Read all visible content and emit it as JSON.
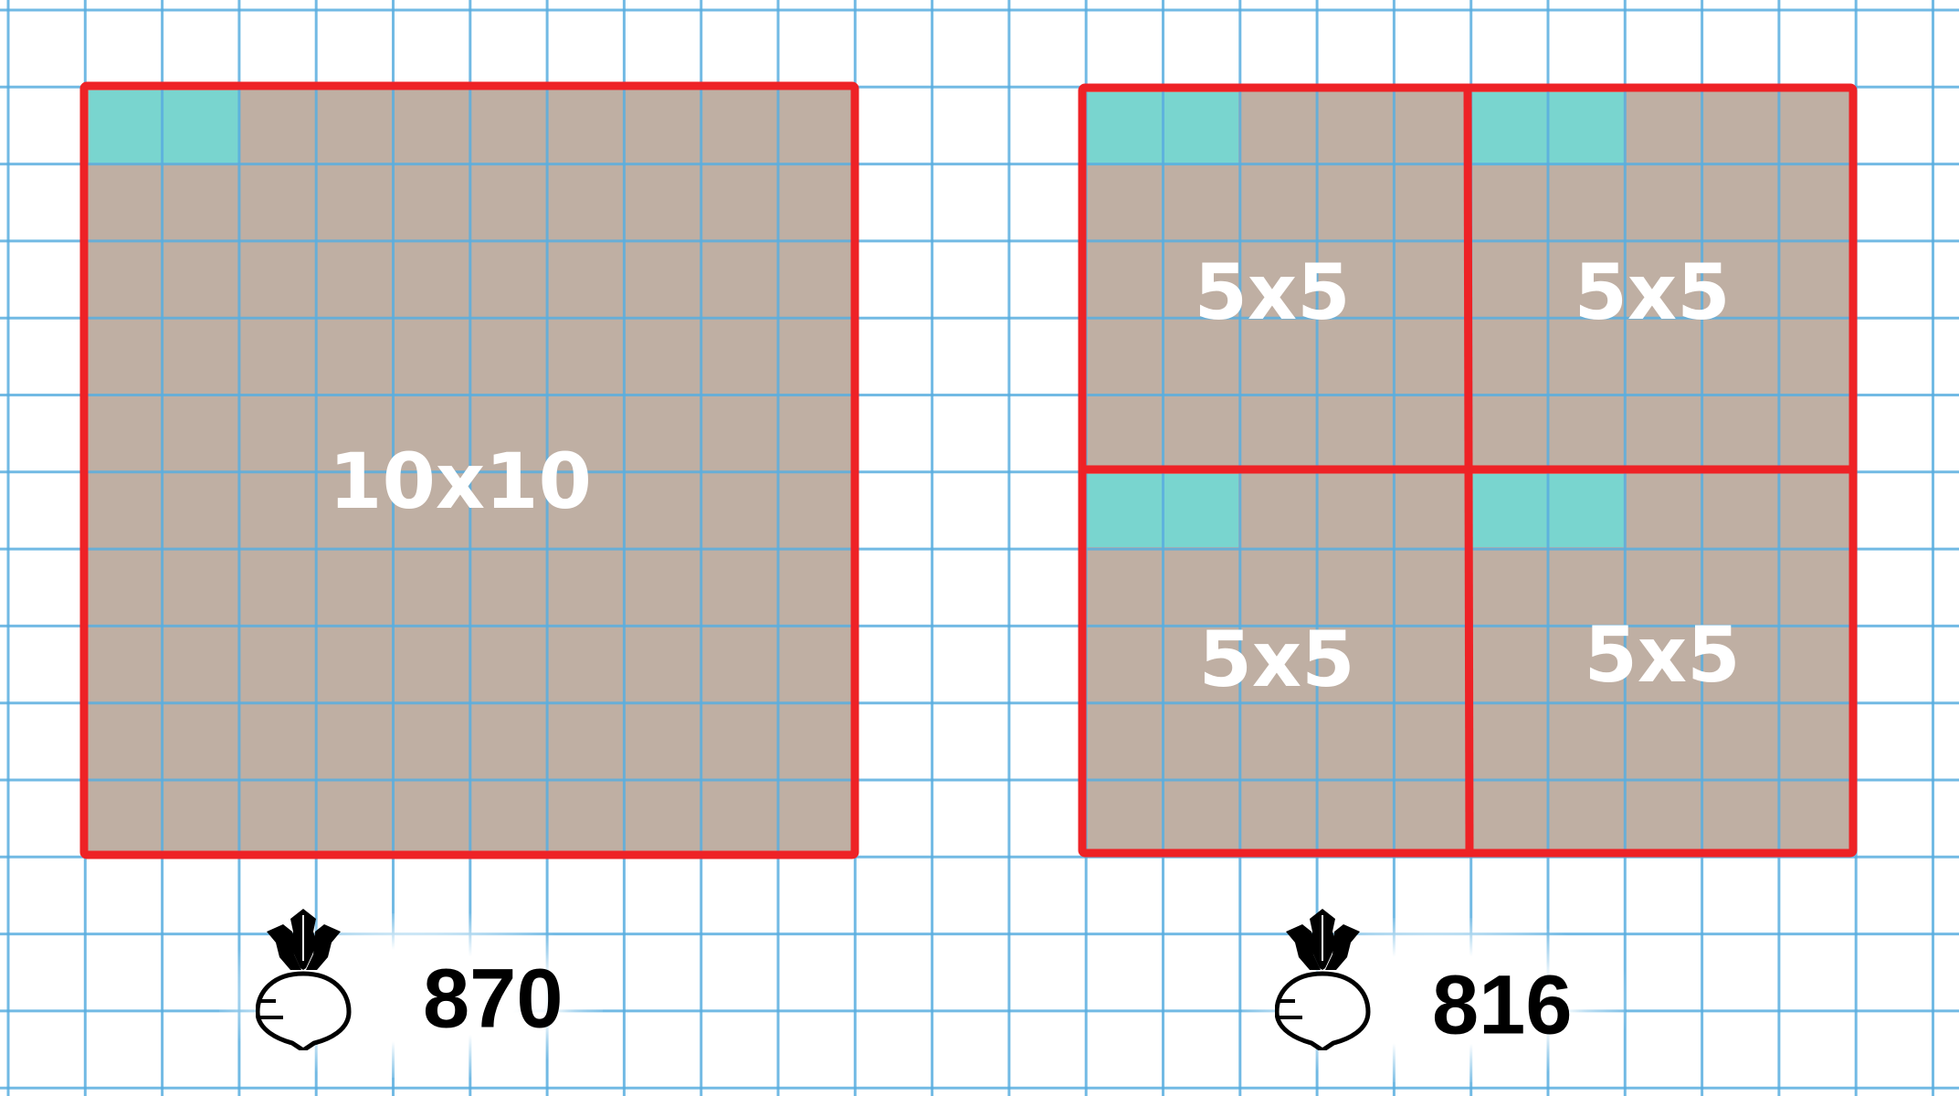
{
  "colors": {
    "grid_line": "#5aaee0",
    "border": "#ee2226",
    "fill": "#bfafa3",
    "highlight": "#79d5cf",
    "label": "#ffffff"
  },
  "left": {
    "label": "10x10",
    "cost": "870",
    "icon": "turnip-icon"
  },
  "right": {
    "labels": [
      "5x5",
      "5x5",
      "5x5",
      "5x5"
    ],
    "cost": "816",
    "icon": "turnip-icon"
  }
}
